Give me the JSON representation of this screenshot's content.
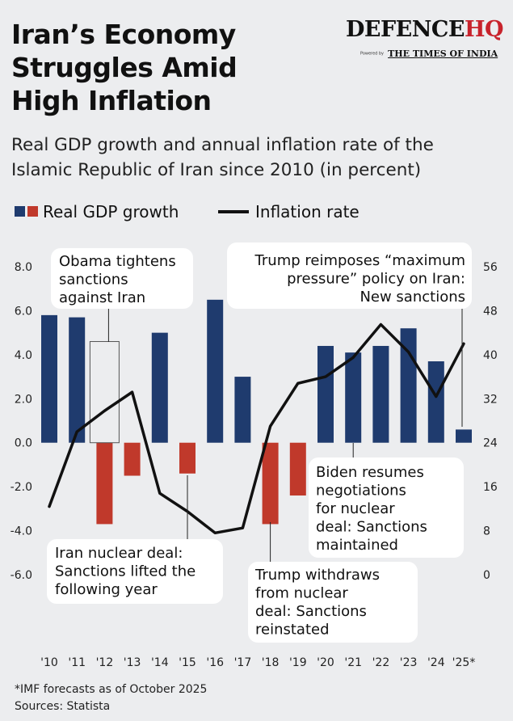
{
  "header": {
    "title_lines": [
      "Iran’s Economy",
      "Struggles Amid",
      "High Inflation"
    ],
    "subtitle_lines": [
      "Real GDP growth and annual inflation rate of the",
      "Islamic Republic of Iran since 2010 (in percent)"
    ]
  },
  "logo": {
    "defence": "DEFENCE",
    "hq": "HQ",
    "powered": "Powered by",
    "toi": "THE TIMES OF INDIA"
  },
  "legend": {
    "gdp": "Real GDP growth",
    "inflation": "Inflation rate"
  },
  "colors": {
    "positive_bar": "#1f3b6e",
    "negative_bar": "#c0392b",
    "line": "#111111",
    "background": "#ecedef"
  },
  "chart_data": {
    "type": "bar",
    "categories": [
      "'10",
      "'11",
      "'12",
      "'13",
      "'14",
      "'15",
      "'16",
      "'17",
      "'18",
      "'19",
      "'20",
      "'21",
      "'22",
      "'23",
      "'24",
      "'25*"
    ],
    "series": [
      {
        "name": "Real GDP growth",
        "type": "bar",
        "axis": "left",
        "values": [
          5.8,
          5.7,
          -3.7,
          -1.5,
          5.0,
          -1.4,
          6.5,
          3.0,
          -3.7,
          -2.4,
          4.4,
          4.1,
          4.4,
          5.2,
          3.7,
          0.6
        ]
      },
      {
        "name": "Inflation rate",
        "type": "line",
        "axis": "right",
        "values": [
          12.4,
          26.0,
          29.8,
          33.2,
          14.8,
          11.5,
          7.6,
          8.5,
          27.0,
          34.8,
          36.0,
          39.5,
          45.5,
          40.5,
          32.4,
          42.0
        ]
      }
    ],
    "left_axis": {
      "range": [
        -6.0,
        8.0
      ],
      "ticks": [
        "8.0",
        "6.0",
        "4.0",
        "2.0",
        "0.0",
        "-2.0",
        "-4.0",
        "-6.0"
      ],
      "tick_values": [
        8,
        6,
        4,
        2,
        0,
        -2,
        -4,
        -6
      ]
    },
    "right_axis": {
      "range": [
        0,
        56
      ],
      "ticks": [
        "56",
        "48",
        "40",
        "32",
        "24",
        "16",
        "8",
        "0"
      ],
      "tick_values": [
        56,
        48,
        40,
        32,
        24,
        16,
        8,
        0
      ]
    },
    "annotations": [
      {
        "lines": [
          "Obama tightens",
          "sanctions",
          "against Iran"
        ],
        "year": "'13"
      },
      {
        "lines": [
          "Iran nuclear deal:",
          "Sanctions lifted the",
          "following year"
        ],
        "year": "'15"
      },
      {
        "lines": [
          "Trump withdraws",
          "from nuclear",
          "deal: Sanctions",
          "reinstated"
        ],
        "year": "'18"
      },
      {
        "lines": [
          "Biden resumes",
          "negotiations",
          "for nuclear",
          "deal: Sanctions",
          "maintained"
        ],
        "year": "'21"
      },
      {
        "lines": [
          "Trump reimposes “maximum",
          "pressure” policy on Iran:",
          "New sanctions"
        ],
        "year": "'25*"
      }
    ],
    "footnotes": [
      "*IMF forecasts as of October 2025",
      "Sources: Statista"
    ]
  }
}
